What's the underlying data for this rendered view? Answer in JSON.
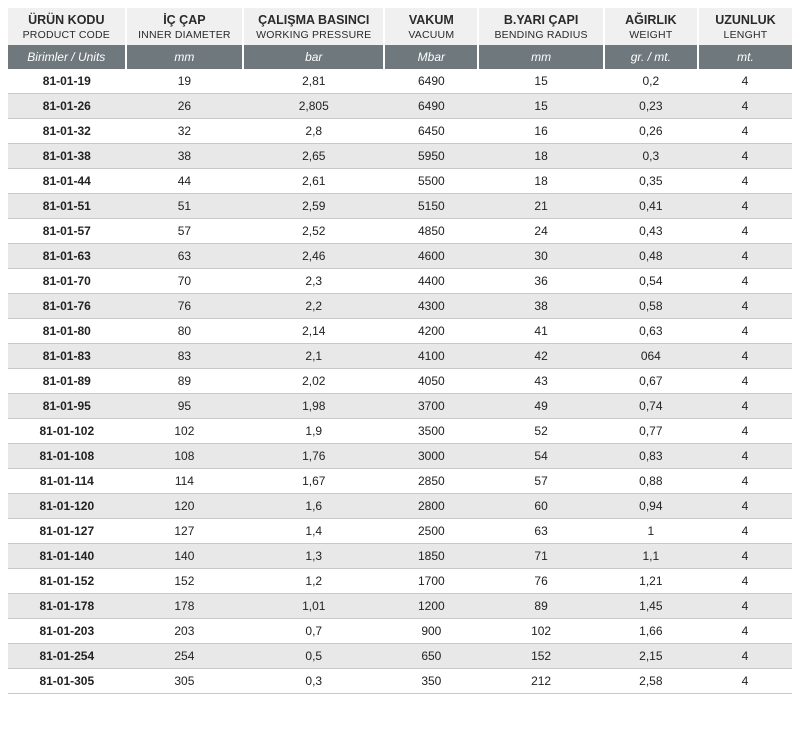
{
  "table": {
    "type": "table",
    "background_color": "#ffffff",
    "header_bg": "#f0f0f0",
    "units_bg": "#6f787c",
    "units_fg": "#ffffff",
    "row_even_bg": "#ffffff",
    "row_odd_bg": "#e8e8e8",
    "border_color": "#c8c8c8",
    "font_family": "Arial",
    "header_primary_fontsize": 12.5,
    "header_secondary_fontsize": 10.5,
    "units_fontsize": 12,
    "cell_fontsize": 12,
    "col_widths_pct": [
      15,
      15,
      18,
      12,
      16,
      12,
      12
    ],
    "columns": [
      {
        "primary": "ÜRÜN KODU",
        "secondary": "PRODUCT CODE",
        "unit": "Birimler / Units"
      },
      {
        "primary": "İÇ ÇAP",
        "secondary": "INNER DIAMETER",
        "unit": "mm"
      },
      {
        "primary": "ÇALIŞMA BASINCI",
        "secondary": "WORKING PRESSURE",
        "unit": "bar"
      },
      {
        "primary": "VAKUM",
        "secondary": "VACUUM",
        "unit": "Mbar"
      },
      {
        "primary": "B.YARI ÇAPI",
        "secondary": "BENDING RADIUS",
        "unit": "mm"
      },
      {
        "primary": "AĞIRLIK",
        "secondary": "WEIGHT",
        "unit": "gr. / mt."
      },
      {
        "primary": "UZUNLUK",
        "secondary": "LENGHT",
        "unit": "mt."
      }
    ],
    "rows": [
      [
        "81-01-19",
        "19",
        "2,81",
        "6490",
        "15",
        "0,2",
        "4"
      ],
      [
        "81-01-26",
        "26",
        "2,805",
        "6490",
        "15",
        "0,23",
        "4"
      ],
      [
        "81-01-32",
        "32",
        "2,8",
        "6450",
        "16",
        "0,26",
        "4"
      ],
      [
        "81-01-38",
        "38",
        "2,65",
        "5950",
        "18",
        "0,3",
        "4"
      ],
      [
        "81-01-44",
        "44",
        "2,61",
        "5500",
        "18",
        "0,35",
        "4"
      ],
      [
        "81-01-51",
        "51",
        "2,59",
        "5150",
        "21",
        "0,41",
        "4"
      ],
      [
        "81-01-57",
        "57",
        "2,52",
        "4850",
        "24",
        "0,43",
        "4"
      ],
      [
        "81-01-63",
        "63",
        "2,46",
        "4600",
        "30",
        "0,48",
        "4"
      ],
      [
        "81-01-70",
        "70",
        "2,3",
        "4400",
        "36",
        "0,54",
        "4"
      ],
      [
        "81-01-76",
        "76",
        "2,2",
        "4300",
        "38",
        "0,58",
        "4"
      ],
      [
        "81-01-80",
        "80",
        "2,14",
        "4200",
        "41",
        "0,63",
        "4"
      ],
      [
        "81-01-83",
        "83",
        "2,1",
        "4100",
        "42",
        "064",
        "4"
      ],
      [
        "81-01-89",
        "89",
        "2,02",
        "4050",
        "43",
        "0,67",
        "4"
      ],
      [
        "81-01-95",
        "95",
        "1,98",
        "3700",
        "49",
        "0,74",
        "4"
      ],
      [
        "81-01-102",
        "102",
        "1,9",
        "3500",
        "52",
        "0,77",
        "4"
      ],
      [
        "81-01-108",
        "108",
        "1,76",
        "3000",
        "54",
        "0,83",
        "4"
      ],
      [
        "81-01-114",
        "114",
        "1,67",
        "2850",
        "57",
        "0,88",
        "4"
      ],
      [
        "81-01-120",
        "120",
        "1,6",
        "2800",
        "60",
        "0,94",
        "4"
      ],
      [
        "81-01-127",
        "127",
        "1,4",
        "2500",
        "63",
        "1",
        "4"
      ],
      [
        "81-01-140",
        "140",
        "1,3",
        "1850",
        "71",
        "1,1",
        "4"
      ],
      [
        "81-01-152",
        "152",
        "1,2",
        "1700",
        "76",
        "1,21",
        "4"
      ],
      [
        "81-01-178",
        "178",
        "1,01",
        "1200",
        "89",
        "1,45",
        "4"
      ],
      [
        "81-01-203",
        "203",
        "0,7",
        "900",
        "102",
        "1,66",
        "4"
      ],
      [
        "81-01-254",
        "254",
        "0,5",
        "650",
        "152",
        "2,15",
        "4"
      ],
      [
        "81-01-305",
        "305",
        "0,3",
        "350",
        "212",
        "2,58",
        "4"
      ]
    ]
  }
}
